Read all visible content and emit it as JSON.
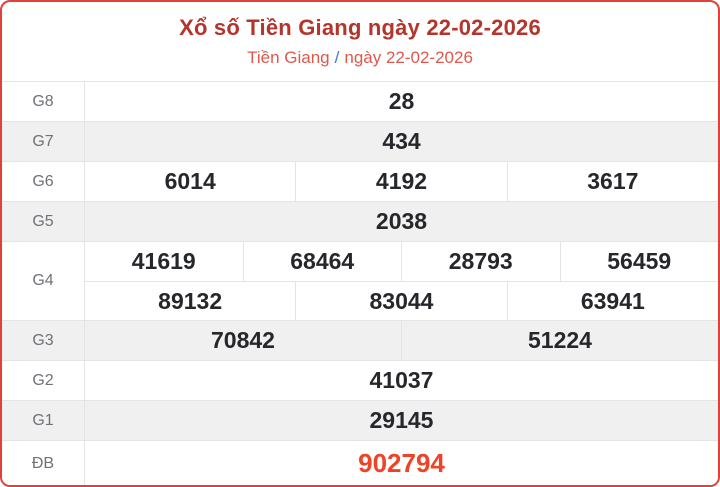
{
  "header": {
    "title": "Xổ số Tiền Giang ngày 22-02-2026",
    "breadcrumb": {
      "province": "Tiền Giang",
      "separator": "/",
      "date": "ngày 22-02-2026"
    }
  },
  "colors": {
    "card_border_red": "#e0413b",
    "title_red": "#b5342b",
    "breadcrumb_red": "#e0584d",
    "breadcrumb_separator_blue": "#4176d9",
    "number_dark": "#26272b",
    "special_prize_red": "#ee4326",
    "label_gray": "#6e7176",
    "alt_row_bg": "#f0f0f1",
    "divider_gray": "#e4e4e6"
  },
  "table": {
    "rows": [
      {
        "label": "G8",
        "lines": [
          {
            "cells": [
              "28"
            ]
          }
        ]
      },
      {
        "label": "G7",
        "lines": [
          {
            "cells": [
              "434"
            ]
          }
        ]
      },
      {
        "label": "G6",
        "lines": [
          {
            "cells": [
              "6014",
              "4192",
              "3617"
            ]
          }
        ]
      },
      {
        "label": "G5",
        "lines": [
          {
            "cells": [
              "2038"
            ]
          }
        ]
      },
      {
        "label": "G4",
        "lines": [
          {
            "cells": [
              "41619",
              "68464",
              "28793",
              "56459"
            ]
          },
          {
            "cells": [
              "89132",
              "83044",
              "63941"
            ]
          }
        ]
      },
      {
        "label": "G3",
        "lines": [
          {
            "cells": [
              "70842",
              "51224"
            ]
          }
        ]
      },
      {
        "label": "G2",
        "lines": [
          {
            "cells": [
              "41037"
            ]
          }
        ]
      },
      {
        "label": "G1",
        "lines": [
          {
            "cells": [
              "29145"
            ]
          }
        ]
      },
      {
        "label": "ĐB",
        "lines": [
          {
            "cells": [
              "902794"
            ]
          }
        ]
      }
    ]
  }
}
